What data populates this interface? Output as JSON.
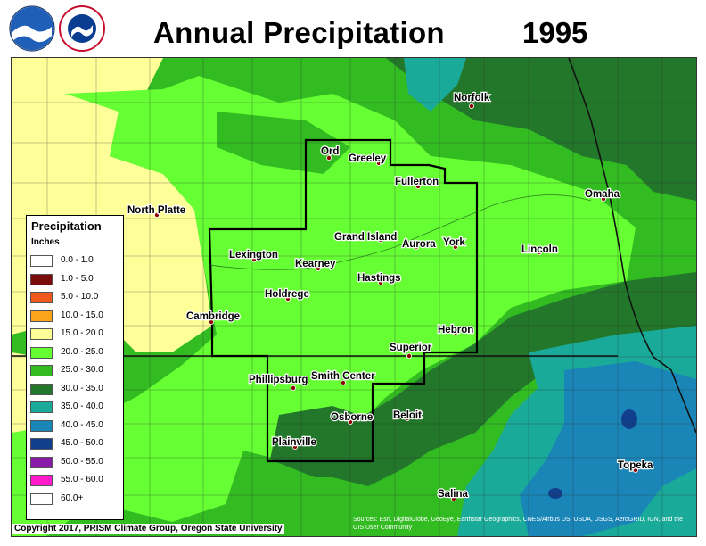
{
  "header": {
    "title": "Annual Precipitation",
    "year": "1995"
  },
  "legend": {
    "title": "Precipitation",
    "units": "Inches",
    "items": [
      {
        "label": "0.0 - 1.0",
        "color": "#ffffff"
      },
      {
        "label": "1.0 - 5.0",
        "color": "#7a0c0c"
      },
      {
        "label": "5.0 - 10.0",
        "color": "#ef5a1c"
      },
      {
        "label": "10.0 - 15.0",
        "color": "#f9a41a"
      },
      {
        "label": "15.0 - 20.0",
        "color": "#ffff99"
      },
      {
        "label": "20.0 - 25.0",
        "color": "#66ff33"
      },
      {
        "label": "25.0 - 30.0",
        "color": "#33bb22"
      },
      {
        "label": "30.0 - 35.0",
        "color": "#22772a"
      },
      {
        "label": "35.0 - 40.0",
        "color": "#1aaa99"
      },
      {
        "label": "40.0 - 45.0",
        "color": "#1a86b8"
      },
      {
        "label": "45.0 - 50.0",
        "color": "#123f8c"
      },
      {
        "label": "50.0 - 55.0",
        "color": "#8a1aa8"
      },
      {
        "label": "55.0 - 60.0",
        "color": "#ff1acc"
      },
      {
        "label": "60.0+",
        "color": "#ffffff"
      }
    ]
  },
  "cities": [
    {
      "name": "Norfolk"
    },
    {
      "name": "Ord"
    },
    {
      "name": "Greeley"
    },
    {
      "name": "Fullerton"
    },
    {
      "name": "Omaha"
    },
    {
      "name": "North Platte"
    },
    {
      "name": "Grand Island"
    },
    {
      "name": "Aurora"
    },
    {
      "name": "York"
    },
    {
      "name": "Lincoln"
    },
    {
      "name": "Lexington"
    },
    {
      "name": "Kearney"
    },
    {
      "name": "Hastings"
    },
    {
      "name": "Holdrege"
    },
    {
      "name": "Cambridge"
    },
    {
      "name": "Hebron"
    },
    {
      "name": "Superior"
    },
    {
      "name": "Phillipsburg"
    },
    {
      "name": "Smith Center"
    },
    {
      "name": "Osborne"
    },
    {
      "name": "Beloit"
    },
    {
      "name": "Plainville"
    },
    {
      "name": "Topeka"
    },
    {
      "name": "Salina"
    }
  ],
  "footer": {
    "copyright": "Copyright 2017, PRISM Climate Group, Oregon State University",
    "sources": "Sources: Esri, DigitalGlobe, GeoEye, Earthstar Geographics, CNES/Airbus DS, USDA, USGS, AeroGRID, IGN, and the GIS User Community"
  }
}
